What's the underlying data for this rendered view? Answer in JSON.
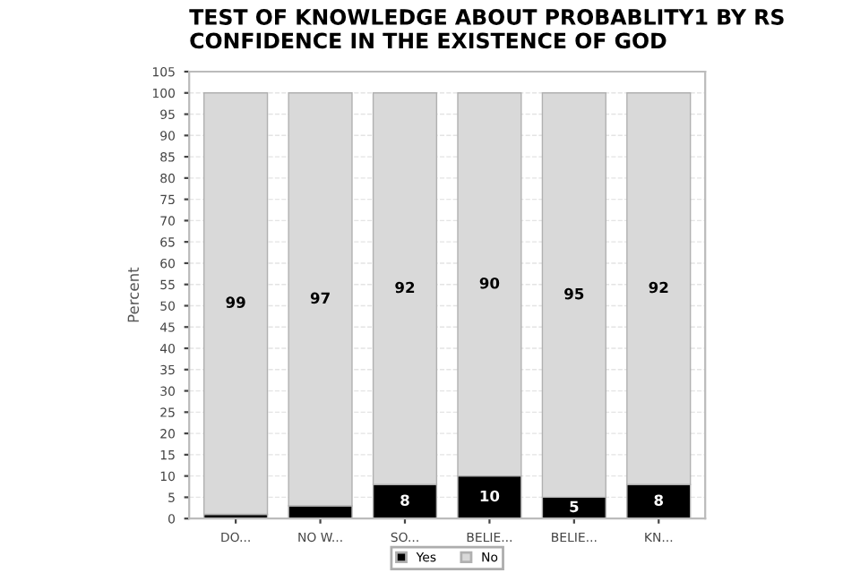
{
  "chart_data": {
    "type": "bar",
    "title": "TEST OF KNOWLEDGE ABOUT PROBABLITY1 BY RS\nCONFIDENCE IN THE EXISTENCE OF GOD",
    "ylabel": "Percent",
    "categories": [
      "DO...",
      "NO W...",
      "SO...",
      "BELIE...",
      "BELIE...",
      "KN..."
    ],
    "stacked": true,
    "series": [
      {
        "name": "Yes",
        "color": "#000000",
        "values": [
          1,
          3,
          8,
          10,
          5,
          8
        ],
        "value_labels": [
          null,
          null,
          "8",
          "10",
          "5",
          "8"
        ]
      },
      {
        "name": "No",
        "color": "#d9d9d9",
        "values": [
          99,
          97,
          92,
          90,
          95,
          92
        ],
        "value_labels": [
          "99",
          "97",
          "92",
          "90",
          "95",
          "92"
        ]
      }
    ],
    "ylim": [
      0,
      105
    ],
    "yticks": [
      0,
      5,
      10,
      15,
      20,
      25,
      30,
      35,
      40,
      45,
      50,
      55,
      60,
      65,
      70,
      75,
      80,
      85,
      90,
      95,
      100,
      105
    ],
    "grid": "y",
    "legend": "bottom"
  }
}
